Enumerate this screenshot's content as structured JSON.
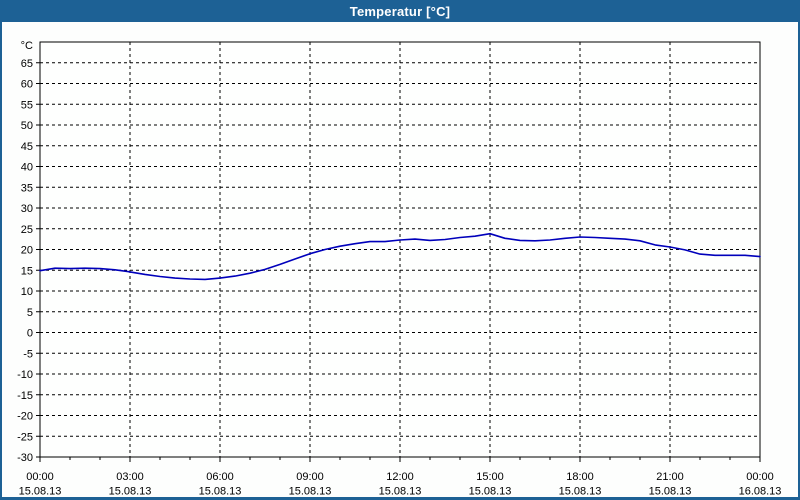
{
  "window": {
    "title": "Temperatur [°C]",
    "titlebar_color": "#1d6195",
    "border_color": "#1d6195",
    "background_color": "#fdfefd"
  },
  "chart_data": {
    "type": "line",
    "title": "Temperatur [°C]",
    "grid": "dashed-black",
    "plot_background": "#fefffe",
    "y_axis": {
      "unit_label": "°C",
      "min": -30,
      "max": 70,
      "tick_step": 5,
      "ticks": [
        65,
        60,
        55,
        50,
        45,
        40,
        35,
        30,
        25,
        20,
        15,
        10,
        5,
        0,
        -5,
        -10,
        -15,
        -20,
        -25,
        -30
      ]
    },
    "x_axis": {
      "hours_span": 24,
      "minor_tick_every_hours": 1,
      "major_ticks": [
        {
          "h": 0,
          "time": "00:00",
          "date": "15.08.13"
        },
        {
          "h": 3,
          "time": "03:00",
          "date": "15.08.13"
        },
        {
          "h": 6,
          "time": "06:00",
          "date": "15.08.13"
        },
        {
          "h": 9,
          "time": "09:00",
          "date": "15.08.13"
        },
        {
          "h": 12,
          "time": "12:00",
          "date": "15.08.13"
        },
        {
          "h": 15,
          "time": "15:00",
          "date": "15.08.13"
        },
        {
          "h": 18,
          "time": "18:00",
          "date": "15.08.13"
        },
        {
          "h": 21,
          "time": "21:00",
          "date": "15.08.13"
        },
        {
          "h": 24,
          "time": "00:00",
          "date": "16.08.13"
        }
      ]
    },
    "series": [
      {
        "name": "Temperatur",
        "color": "#0000bb",
        "x_hours": [
          0,
          0.5,
          1,
          1.5,
          2,
          2.5,
          3,
          3.5,
          4,
          4.5,
          5,
          5.5,
          6,
          6.5,
          7,
          7.5,
          8,
          8.5,
          9,
          9.5,
          10,
          10.5,
          11,
          11.5,
          12,
          12.5,
          13,
          13.5,
          14,
          14.5,
          15,
          15.5,
          16,
          16.5,
          17,
          17.5,
          18,
          18.5,
          19,
          19.5,
          20,
          20.5,
          21,
          21.5,
          22,
          22.5,
          23,
          23.5,
          24
        ],
        "values": [
          14.9,
          15.5,
          15.4,
          15.5,
          15.4,
          15.1,
          14.6,
          14.0,
          13.5,
          13.1,
          12.9,
          12.8,
          13.1,
          13.6,
          14.3,
          15.2,
          16.4,
          17.7,
          19.0,
          20.0,
          20.8,
          21.4,
          21.9,
          21.9,
          22.3,
          22.5,
          22.2,
          22.4,
          22.9,
          23.2,
          23.8,
          22.7,
          22.2,
          22.1,
          22.3,
          22.7,
          23.0,
          22.9,
          22.7,
          22.5,
          22.1,
          21.1,
          20.6,
          19.9,
          18.9,
          18.6,
          18.6,
          18.6,
          18.3
        ]
      }
    ]
  }
}
